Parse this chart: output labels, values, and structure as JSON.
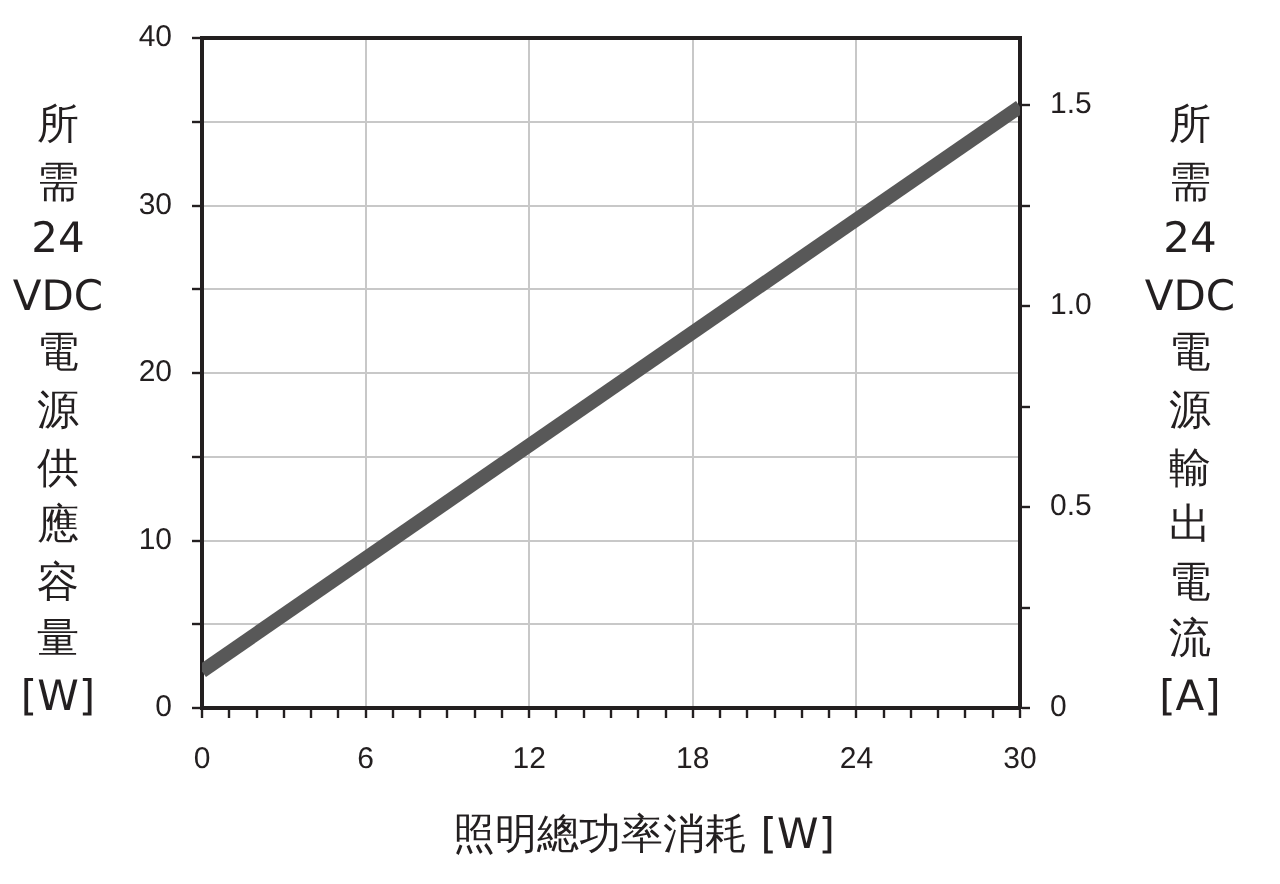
{
  "chart_data": {
    "type": "line",
    "xlabel": "照明總功率消耗 [W]",
    "ylabel": "所需24VDC電源供應容量[W]",
    "y2label": "所需24VDC電源輸出電流[A]",
    "x": [
      0,
      30
    ],
    "series": [
      {
        "color": "#585858",
        "values": [
          2.2,
          35.9
        ]
      }
    ],
    "xlim": [
      0,
      30
    ],
    "xticks": [
      0,
      {
        "value": 1,
        "label": null
      },
      {
        "value": 2,
        "label": null
      },
      {
        "value": 3,
        "label": null
      },
      {
        "value": 4,
        "label": null
      },
      {
        "value": 5,
        "label": null
      },
      6,
      {
        "value": 7,
        "label": null
      },
      {
        "value": 8,
        "label": null
      },
      {
        "value": 9,
        "label": null
      },
      {
        "value": 10,
        "label": null
      },
      {
        "value": 11,
        "label": null
      },
      12,
      {
        "value": 13,
        "label": null
      },
      {
        "value": 14,
        "label": null
      },
      {
        "value": 15,
        "label": null
      },
      {
        "value": 16,
        "label": null
      },
      {
        "value": 17,
        "label": null
      },
      18,
      {
        "value": 19,
        "label": null
      },
      {
        "value": 20,
        "label": null
      },
      {
        "value": 21,
        "label": null
      },
      {
        "value": 22,
        "label": null
      },
      {
        "value": 23,
        "label": null
      },
      24,
      {
        "value": 25,
        "label": null
      },
      {
        "value": 26,
        "label": null
      },
      {
        "value": 27,
        "label": null
      },
      {
        "value": 28,
        "label": null
      },
      {
        "value": 29,
        "label": null
      },
      30
    ],
    "ylim": [
      0,
      40
    ],
    "yticks": [
      0,
      {
        "value": 5,
        "label": null
      },
      10,
      {
        "value": 15,
        "label": null
      },
      20,
      {
        "value": 25,
        "label": null
      },
      30,
      {
        "value": 35,
        "label": null
      },
      40
    ],
    "y2lim": [
      0,
      1.667
    ],
    "y2ticks": [
      0,
      {
        "value": 0.25,
        "label": null
      },
      0.5,
      {
        "value": 0.75,
        "label": null
      },
      {
        "value": 1,
        "label": "1.0"
      },
      {
        "value": 1.25,
        "label": null
      },
      1.5
    ],
    "grid": true,
    "legend": false,
    "marker": "none",
    "line_style": "solid"
  }
}
